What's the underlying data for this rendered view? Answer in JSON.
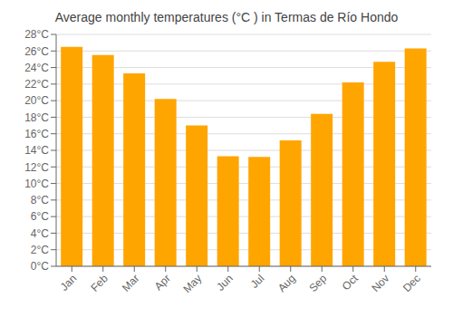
{
  "chart_data": {
    "type": "bar",
    "title": "Average monthly temperatures (°C ) in Termas de Río Hondo",
    "categories": [
      "Jan",
      "Feb",
      "Mar",
      "Apr",
      "May",
      "Jun",
      "Jul",
      "Aug",
      "Sep",
      "Oct",
      "Nov",
      "Dec"
    ],
    "values": [
      26.5,
      25.5,
      23.3,
      20.2,
      17.0,
      13.3,
      13.2,
      15.2,
      18.4,
      22.2,
      24.7,
      26.3
    ],
    "color": "#FFA500",
    "ylim": [
      0,
      28
    ],
    "yticks": [
      {
        "value": 0,
        "label": "0°C"
      },
      {
        "value": 2,
        "label": "2°C"
      },
      {
        "value": 4,
        "label": "4°C"
      },
      {
        "value": 6,
        "label": "6°C"
      },
      {
        "value": 8,
        "label": "8°C"
      },
      {
        "value": 10,
        "label": "10°C"
      },
      {
        "value": 12,
        "label": "12°C"
      },
      {
        "value": 14,
        "label": "14°C"
      },
      {
        "value": 16,
        "label": "16°C"
      },
      {
        "value": 18,
        "label": "18°C"
      },
      {
        "value": 20,
        "label": "20°C"
      },
      {
        "value": 22,
        "label": "22°C"
      },
      {
        "value": 24,
        "label": "24°C"
      },
      {
        "value": 26,
        "label": "26°C"
      },
      {
        "value": 28,
        "label": "28°C"
      }
    ],
    "grid": true
  }
}
